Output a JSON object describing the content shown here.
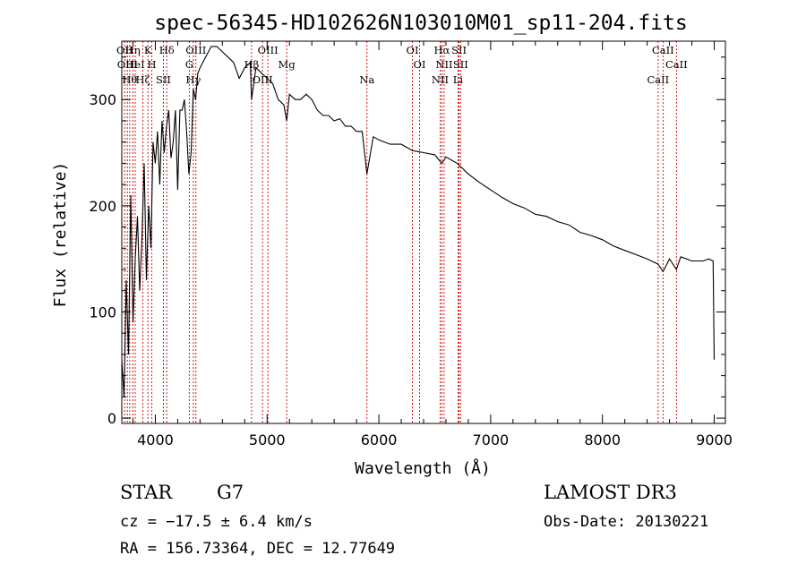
{
  "chart_data": {
    "type": "line",
    "title": "spec-56345-HD102626N103010M01_sp11-204.fits",
    "xlabel": "Wavelength (Å)",
    "ylabel": "Flux (relative)",
    "xlim": [
      3700,
      9100
    ],
    "ylim": [
      -5,
      355
    ],
    "xticks": [
      4000,
      5000,
      6000,
      7000,
      8000,
      9000
    ],
    "yticks": [
      0,
      100,
      200,
      300
    ],
    "xtick_labels": [
      "4000",
      "5000",
      "6000",
      "7000",
      "8000",
      "9000"
    ],
    "ytick_labels": [
      "0",
      "100",
      "200",
      "300"
    ],
    "series": [
      {
        "name": "spectrum",
        "color": "#000000",
        "x": [
          3700,
          3720,
          3740,
          3760,
          3780,
          3800,
          3820,
          3840,
          3860,
          3880,
          3900,
          3920,
          3940,
          3960,
          3980,
          4000,
          4020,
          4040,
          4060,
          4080,
          4100,
          4120,
          4140,
          4160,
          4180,
          4200,
          4220,
          4240,
          4260,
          4280,
          4300,
          4320,
          4340,
          4360,
          4380,
          4400,
          4450,
          4500,
          4550,
          4600,
          4650,
          4700,
          4750,
          4800,
          4850,
          4861,
          4900,
          4950,
          5000,
          5050,
          5100,
          5150,
          5175,
          5200,
          5250,
          5300,
          5350,
          5400,
          5450,
          5500,
          5550,
          5600,
          5650,
          5700,
          5750,
          5800,
          5850,
          5893,
          5950,
          6000,
          6100,
          6200,
          6300,
          6400,
          6500,
          6563,
          6600,
          6700,
          6800,
          6900,
          7000,
          7100,
          7200,
          7300,
          7400,
          7500,
          7600,
          7700,
          7800,
          7900,
          8000,
          8100,
          8200,
          8300,
          8400,
          8498,
          8542,
          8600,
          8662,
          8700,
          8800,
          8900,
          8950,
          8990,
          9000
        ],
        "values": [
          55,
          20,
          130,
          60,
          210,
          90,
          150,
          190,
          120,
          170,
          240,
          130,
          200,
          160,
          260,
          240,
          270,
          220,
          280,
          250,
          275,
          290,
          245,
          260,
          290,
          215,
          290,
          290,
          300,
          270,
          230,
          250,
          310,
          300,
          325,
          330,
          340,
          350,
          350,
          345,
          340,
          335,
          320,
          330,
          335,
          300,
          330,
          325,
          320,
          315,
          300,
          295,
          280,
          305,
          300,
          300,
          305,
          300,
          290,
          285,
          285,
          280,
          282,
          275,
          275,
          270,
          270,
          230,
          265,
          262,
          258,
          258,
          252,
          250,
          248,
          240,
          246,
          240,
          230,
          222,
          215,
          208,
          202,
          198,
          192,
          190,
          185,
          182,
          175,
          172,
          168,
          162,
          158,
          154,
          150,
          145,
          138,
          150,
          140,
          152,
          148,
          148,
          150,
          148,
          55
        ]
      }
    ],
    "lines": [
      {
        "wavelength": 3726,
        "label": "OII"
      },
      {
        "wavelength": 3750,
        "label": "OIII"
      },
      {
        "wavelength": 3771,
        "label": "Hθ"
      },
      {
        "wavelength": 3798,
        "label": "Hη"
      },
      {
        "wavelength": 3820,
        "label": "HeI"
      },
      {
        "wavelength": 3889,
        "label": "Hζ"
      },
      {
        "wavelength": 3934,
        "label": "K"
      },
      {
        "wavelength": 3969,
        "label": "H"
      },
      {
        "wavelength": 4072,
        "label": "SII"
      },
      {
        "wavelength": 4102,
        "label": "Hδ"
      },
      {
        "wavelength": 4304,
        "label": "G"
      },
      {
        "wavelength": 4340,
        "label": "Hγ"
      },
      {
        "wavelength": 4363,
        "label": "OIII"
      },
      {
        "wavelength": 4861,
        "label": "Hβ"
      },
      {
        "wavelength": 4959,
        "label": "OIII"
      },
      {
        "wavelength": 5007,
        "label": "OIII"
      },
      {
        "wavelength": 5175,
        "label": "Mg"
      },
      {
        "wavelength": 5893,
        "label": "Na"
      },
      {
        "wavelength": 6300,
        "label": "OI"
      },
      {
        "wavelength": 6364,
        "label": "OI"
      },
      {
        "wavelength": 6548,
        "label": "NII"
      },
      {
        "wavelength": 6563,
        "label": "Hα"
      },
      {
        "wavelength": 6584,
        "label": "NII"
      },
      {
        "wavelength": 6708,
        "label": "Li"
      },
      {
        "wavelength": 6717,
        "label": "SII"
      },
      {
        "wavelength": 6731,
        "label": "SII"
      },
      {
        "wavelength": 8498,
        "label": "CaII"
      },
      {
        "wavelength": 8542,
        "label": "CaII"
      },
      {
        "wavelength": 8662,
        "label": "CaII"
      }
    ],
    "line_color": "#cc0000"
  },
  "info": {
    "object_type": "STAR",
    "subclass": "G7",
    "cz": "cz = −17.5 ± 6.4 km/s",
    "coords": "RA = 156.73364, DEC =  12.77649",
    "survey": "LAMOST DR3",
    "obs_date": "Obs-Date: 20130221"
  }
}
